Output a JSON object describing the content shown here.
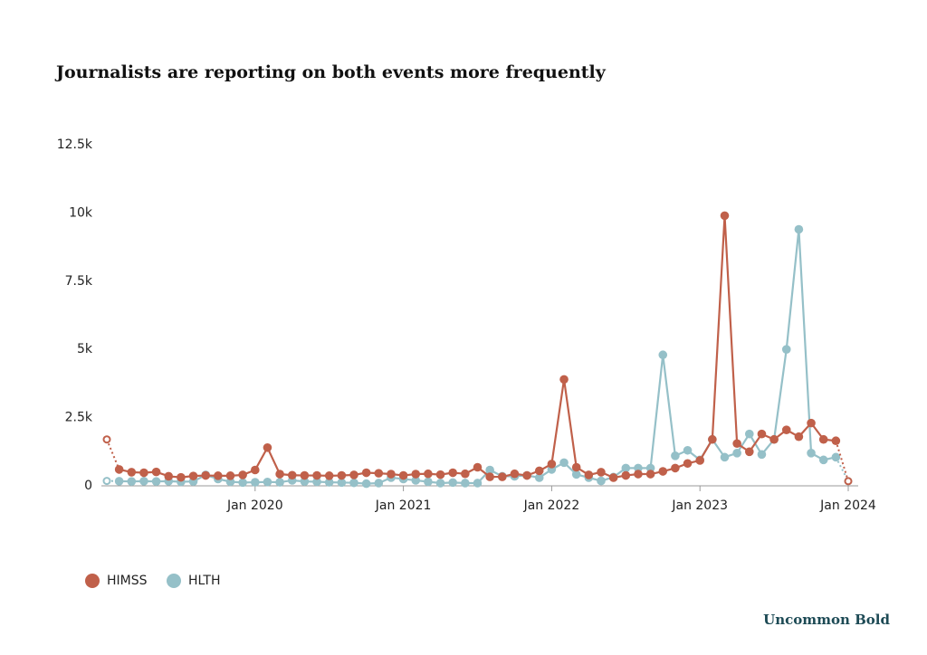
{
  "chart_data": {
    "type": "line",
    "title": "Journalists are reporting on both events more frequently",
    "brand": "Uncommon Bold",
    "x": [
      "2019-01",
      "2019-02",
      "2019-03",
      "2019-04",
      "2019-05",
      "2019-06",
      "2019-07",
      "2019-08",
      "2019-09",
      "2019-10",
      "2019-11",
      "2019-12",
      "2020-01",
      "2020-02",
      "2020-03",
      "2020-04",
      "2020-05",
      "2020-06",
      "2020-07",
      "2020-08",
      "2020-09",
      "2020-10",
      "2020-11",
      "2020-12",
      "2021-01",
      "2021-02",
      "2021-03",
      "2021-04",
      "2021-05",
      "2021-06",
      "2021-07",
      "2021-08",
      "2021-09",
      "2021-10",
      "2021-11",
      "2021-12",
      "2022-01",
      "2022-02",
      "2022-03",
      "2022-04",
      "2022-05",
      "2022-06",
      "2022-07",
      "2022-08",
      "2022-09",
      "2022-10",
      "2022-11",
      "2022-12",
      "2023-01",
      "2023-02",
      "2023-03",
      "2023-04",
      "2023-05",
      "2023-06",
      "2023-07",
      "2023-08",
      "2023-09",
      "2023-10",
      "2023-11",
      "2023-12",
      "2024-01"
    ],
    "xlim": [
      "2019-01",
      "2024-01"
    ],
    "xticks": [
      {
        "value": "2020-01",
        "label": "Jan 2020"
      },
      {
        "value": "2021-01",
        "label": "Jan 2021"
      },
      {
        "value": "2022-01",
        "label": "Jan 2022"
      },
      {
        "value": "2023-01",
        "label": "Jan 2023"
      },
      {
        "value": "2024-01",
        "label": "Jan 2024"
      }
    ],
    "ylim": [
      0,
      12500
    ],
    "yticks": [
      0,
      {
        "value": 2500,
        "label": "2.5k"
      },
      {
        "value": 5000,
        "label": "5k"
      },
      {
        "value": 7500,
        "label": "7.5k"
      },
      {
        "value": 10000,
        "label": "10k"
      },
      {
        "value": 12500,
        "label": "12.5k"
      }
    ],
    "grid": false,
    "dotted_ends": true,
    "legend": "bottom-left",
    "series": [
      {
        "name": "HIMSS",
        "color": "#c0604a",
        "values": [
          1700,
          600,
          500,
          480,
          510,
          350,
          310,
          360,
          380,
          370,
          370,
          400,
          580,
          1400,
          430,
          390,
          380,
          380,
          370,
          380,
          400,
          480,
          460,
          430,
          380,
          430,
          440,
          410,
          480,
          440,
          680,
          330,
          330,
          440,
          380,
          550,
          800,
          3900,
          680,
          400,
          500,
          300,
          380,
          430,
          430,
          530,
          650,
          820,
          930,
          1700,
          9900,
          1550,
          1250,
          1900,
          1700,
          2050,
          1800,
          2300,
          1700,
          1650,
          170
        ]
      },
      {
        "name": "HLTH",
        "color": "#95c0c8",
        "values": [
          180,
          170,
          160,
          170,
          160,
          170,
          150,
          160,
          400,
          250,
          150,
          120,
          130,
          140,
          130,
          200,
          160,
          150,
          130,
          120,
          110,
          80,
          100,
          300,
          250,
          200,
          150,
          100,
          120,
          100,
          100,
          580,
          350,
          350,
          380,
          300,
          600,
          850,
          420,
          300,
          180,
          320,
          650,
          650,
          650,
          4800,
          1100,
          1300,
          950,
          1700,
          1050,
          1200,
          1900,
          1150,
          1700,
          5000,
          9400,
          1200,
          950,
          1050,
          170
        ]
      }
    ]
  }
}
